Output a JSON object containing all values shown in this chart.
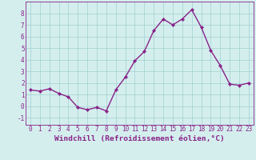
{
  "x": [
    0,
    1,
    2,
    3,
    4,
    5,
    6,
    7,
    8,
    9,
    10,
    11,
    12,
    13,
    14,
    15,
    16,
    17,
    18,
    19,
    20,
    21,
    22,
    23
  ],
  "y": [
    1.4,
    1.3,
    1.5,
    1.1,
    0.8,
    -0.1,
    -0.3,
    -0.1,
    -0.4,
    1.4,
    2.5,
    3.9,
    4.7,
    6.5,
    7.5,
    7.0,
    7.5,
    8.3,
    6.8,
    4.8,
    3.5,
    1.9,
    1.8,
    2.0
  ],
  "line_color": "#882288",
  "marker_color": "#882288",
  "bg_color": "#d4eeee",
  "grid_color": "#aad4d4",
  "xlabel": "Windchill (Refroidissement éolien,°C)",
  "xlim": [
    -0.5,
    23.5
  ],
  "ylim": [
    -1.6,
    9.0
  ],
  "yticks": [
    -1,
    0,
    1,
    2,
    3,
    4,
    5,
    6,
    7,
    8
  ],
  "xticks": [
    0,
    1,
    2,
    3,
    4,
    5,
    6,
    7,
    8,
    9,
    10,
    11,
    12,
    13,
    14,
    15,
    16,
    17,
    18,
    19,
    20,
    21,
    22,
    23
  ],
  "tick_fontsize": 5.5,
  "label_fontsize": 6.8,
  "marker_size": 2.2,
  "line_width": 1.0
}
